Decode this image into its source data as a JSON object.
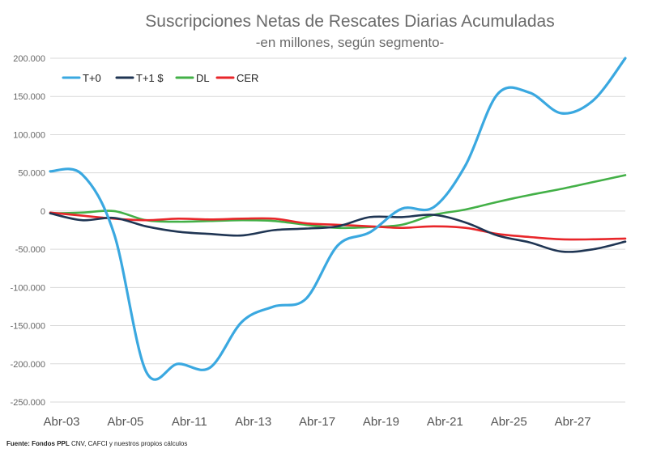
{
  "chart_data": {
    "type": "line",
    "title": "Suscripciones Netas de Rescates Diarias Acumuladas",
    "subtitle": "-en millones, según segmento-",
    "source_bold": "Fuente: Fondos PPL",
    "source_rest": " CNV, CAFCI y nuestros propios cálculos",
    "ylim": [
      -250000,
      200000
    ],
    "yticks": [
      200000,
      150000,
      100000,
      50000,
      0,
      -50000,
      -100000,
      -150000,
      -200000,
      -250000
    ],
    "ytick_labels": [
      "200.000",
      "150.000",
      "100.000",
      "50.000",
      "0",
      "-50.000",
      "-100.000",
      "-150.000",
      "-200.000",
      "-250.000"
    ],
    "xlim": [
      0,
      18
    ],
    "xtick_labels": [
      "Abr-03",
      "Abr-05",
      "Abr-11",
      "Abr-13",
      "Abr-17",
      "Abr-19",
      "Abr-21",
      "Abr-25",
      "Abr-27"
    ],
    "xtick_positions": [
      0,
      2,
      4,
      6,
      8,
      10,
      12,
      14,
      16
    ],
    "grid": true,
    "legend_position": "top-left",
    "x": [
      0,
      1,
      2,
      3,
      4,
      5,
      6,
      7,
      8,
      9,
      10,
      11,
      12,
      13,
      14,
      15,
      16,
      17,
      18
    ],
    "series": [
      {
        "name": "T+0",
        "color": "#3aa8e0",
        "values": [
          52000,
          48000,
          -30000,
          -210000,
          -200000,
          -205000,
          -145000,
          -125000,
          -115000,
          -45000,
          -28000,
          3000,
          5000,
          60000,
          153000,
          155000,
          128000,
          145000,
          200000
        ]
      },
      {
        "name": "T+1 $",
        "color": "#1f3553",
        "values": [
          -3000,
          -12000,
          -9000,
          -20000,
          -27000,
          -30000,
          -32000,
          -25000,
          -23000,
          -20000,
          -8000,
          -8000,
          -5000,
          -15000,
          -32000,
          -41000,
          -53000,
          -50000,
          -40000
        ]
      },
      {
        "name": "DL",
        "color": "#43b047",
        "values": [
          -3000,
          -2000,
          0,
          -12000,
          -14000,
          -13000,
          -12000,
          -13000,
          -18000,
          -22000,
          -21000,
          -18000,
          -5000,
          2000,
          12000,
          21000,
          29000,
          38000,
          47000
        ]
      },
      {
        "name": "CER",
        "color": "#e8262a",
        "values": [
          -2000,
          -6000,
          -10000,
          -12000,
          -10000,
          -11000,
          -10000,
          -10000,
          -16000,
          -18000,
          -20000,
          -22000,
          -20000,
          -22000,
          -30000,
          -34000,
          -37000,
          -37000,
          -36000
        ]
      }
    ]
  }
}
